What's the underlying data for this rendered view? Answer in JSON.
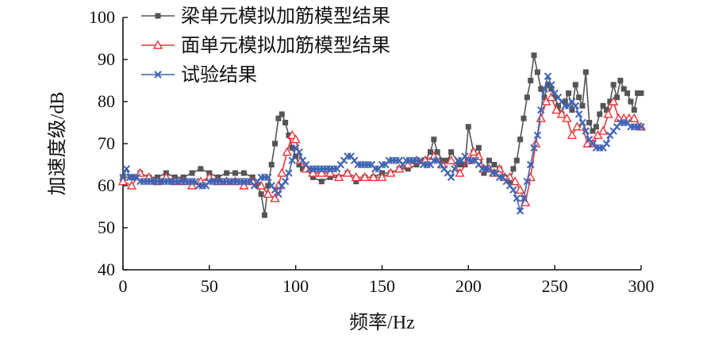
{
  "chart_data": {
    "type": "line",
    "xlabel": "频率/Hz",
    "ylabel": "加速度级/dB",
    "xlim": [
      0,
      300
    ],
    "ylim": [
      40,
      100
    ],
    "xticks": [
      0,
      50,
      100,
      150,
      200,
      250,
      300
    ],
    "yticks": [
      40,
      50,
      60,
      70,
      80,
      90,
      100
    ],
    "grid": false,
    "legend_position": "top-left",
    "series": [
      {
        "name": "梁单元模拟加筋模型结果",
        "color": "#555555",
        "marker": "square",
        "x": [
          0,
          5,
          10,
          15,
          20,
          25,
          30,
          35,
          40,
          45,
          50,
          55,
          60,
          65,
          70,
          75,
          78,
          80,
          82,
          84,
          86,
          88,
          90,
          92,
          94,
          96,
          98,
          100,
          102,
          104,
          106,
          110,
          115,
          120,
          125,
          130,
          135,
          140,
          145,
          150,
          155,
          160,
          165,
          170,
          175,
          178,
          180,
          182,
          185,
          188,
          190,
          195,
          198,
          200,
          203,
          206,
          209,
          212,
          215,
          218,
          221,
          224,
          226,
          228,
          230,
          232,
          234,
          236,
          238,
          240,
          242,
          244,
          246,
          248,
          250,
          252,
          254,
          256,
          258,
          260,
          262,
          264,
          266,
          268,
          270,
          272,
          274,
          276,
          278,
          280,
          282,
          284,
          286,
          288,
          290,
          292,
          294,
          296,
          298,
          300
        ],
        "y": [
          62,
          62,
          63,
          62,
          62,
          63,
          62,
          62,
          63,
          64,
          63,
          62,
          63,
          63,
          63,
          62,
          60,
          58,
          53,
          60,
          65,
          70,
          76,
          77,
          75,
          72,
          69,
          67,
          65,
          64,
          64,
          62,
          61,
          62,
          62,
          63,
          61,
          62,
          62,
          63,
          63,
          64,
          64,
          65,
          66,
          68,
          71,
          68,
          66,
          66,
          68,
          65,
          65,
          74,
          68,
          69,
          63,
          66,
          65,
          64,
          62,
          61,
          64,
          66,
          71,
          76,
          81,
          85,
          91,
          87,
          83,
          81,
          84,
          83,
          81,
          79,
          77,
          80,
          82,
          78,
          84,
          81,
          79,
          87,
          75,
          73,
          74,
          77,
          79,
          78,
          80,
          84,
          81,
          85,
          83,
          82,
          80,
          78,
          82,
          82
        ]
      },
      {
        "name": "面单元模拟加筋模型结果",
        "color": "#e8373a",
        "marker": "triangle",
        "x": [
          0,
          5,
          10,
          15,
          20,
          25,
          30,
          35,
          40,
          45,
          50,
          55,
          60,
          65,
          70,
          75,
          80,
          84,
          88,
          90,
          92,
          95,
          98,
          100,
          103,
          106,
          110,
          115,
          120,
          125,
          130,
          135,
          140,
          145,
          150,
          155,
          160,
          165,
          170,
          175,
          180,
          185,
          190,
          195,
          200,
          203,
          206,
          209,
          212,
          215,
          218,
          221,
          224,
          227,
          230,
          233,
          236,
          239,
          242,
          245,
          248,
          251,
          254,
          257,
          260,
          263,
          266,
          269,
          272,
          275,
          278,
          281,
          284,
          287,
          290,
          293,
          296,
          300
        ],
        "y": [
          61,
          60,
          63,
          62,
          61,
          62,
          61,
          61,
          60,
          61,
          62,
          61,
          61,
          61,
          60,
          61,
          60,
          58,
          57,
          60,
          63,
          68,
          72,
          71,
          66,
          64,
          63,
          63,
          63,
          62,
          63,
          62,
          62,
          62,
          62,
          63,
          64,
          65,
          66,
          66,
          67,
          65,
          66,
          63,
          66,
          68,
          67,
          64,
          64,
          63,
          64,
          62,
          62,
          61,
          59,
          56,
          62,
          70,
          76,
          80,
          81,
          78,
          77,
          76,
          72,
          74,
          74,
          70,
          70,
          72,
          73,
          77,
          80,
          76,
          76,
          76,
          76,
          74
        ]
      },
      {
        "name": "试验结果",
        "color": "#3f63b4",
        "marker": "x",
        "x": [
          0,
          2,
          4,
          6,
          8,
          10,
          12,
          14,
          16,
          18,
          20,
          22,
          24,
          26,
          28,
          30,
          32,
          34,
          36,
          38,
          40,
          42,
          44,
          46,
          48,
          50,
          52,
          54,
          56,
          58,
          60,
          62,
          64,
          66,
          68,
          70,
          72,
          74,
          76,
          78,
          80,
          82,
          84,
          86,
          88,
          90,
          92,
          94,
          96,
          98,
          100,
          102,
          104,
          106,
          108,
          110,
          112,
          114,
          116,
          118,
          120,
          122,
          124,
          126,
          128,
          130,
          132,
          134,
          136,
          138,
          140,
          142,
          144,
          146,
          148,
          150,
          152,
          154,
          156,
          158,
          160,
          162,
          164,
          166,
          168,
          170,
          172,
          174,
          176,
          178,
          180,
          182,
          184,
          186,
          188,
          190,
          192,
          194,
          196,
          198,
          200,
          202,
          204,
          206,
          208,
          210,
          212,
          214,
          216,
          218,
          220,
          222,
          224,
          226,
          228,
          230,
          232,
          234,
          236,
          238,
          240,
          242,
          244,
          246,
          248,
          250,
          252,
          254,
          256,
          258,
          260,
          262,
          264,
          266,
          268,
          270,
          272,
          274,
          276,
          278,
          280,
          282,
          284,
          286,
          288,
          290,
          292,
          294,
          296,
          298,
          300
        ],
        "y": [
          62,
          64,
          62,
          62,
          62,
          61,
          61,
          61,
          61,
          61,
          61,
          61,
          61,
          61,
          61,
          61,
          61,
          61,
          61,
          61,
          61,
          61,
          60,
          60,
          60,
          61,
          61,
          61,
          61,
          61,
          61,
          61,
          61,
          61,
          61,
          61,
          61,
          61,
          60,
          61,
          62,
          62,
          62,
          60,
          59,
          58,
          60,
          61,
          63,
          66,
          69,
          68,
          66,
          65,
          64,
          64,
          64,
          64,
          64,
          64,
          64,
          64,
          64,
          65,
          66,
          67,
          67,
          66,
          65,
          65,
          65,
          65,
          65,
          64,
          64,
          65,
          65,
          66,
          66,
          66,
          66,
          65,
          66,
          66,
          66,
          66,
          66,
          65,
          65,
          65,
          66,
          66,
          65,
          64,
          63,
          62,
          64,
          66,
          66,
          67,
          66,
          66,
          66,
          65,
          64,
          64,
          64,
          63,
          63,
          62,
          62,
          61,
          60,
          59,
          57,
          54,
          57,
          61,
          65,
          69,
          72,
          78,
          83,
          86,
          84,
          82,
          81,
          80,
          79,
          79,
          80,
          79,
          77,
          75,
          73,
          71,
          70,
          69,
          69,
          69,
          70,
          72,
          73,
          74,
          75,
          75,
          75,
          74,
          74,
          74,
          74
        ]
      }
    ]
  }
}
